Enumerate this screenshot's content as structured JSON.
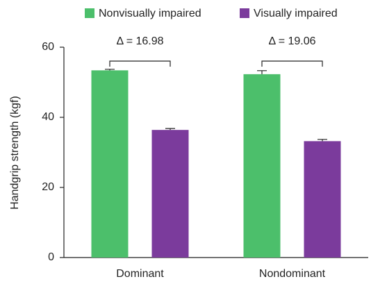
{
  "chart_data": {
    "type": "bar",
    "categories": [
      "Dominant",
      "Nondominant"
    ],
    "series": [
      {
        "name": "Nonvisually impaired",
        "color": "#4cbf6b",
        "values": [
          53.4,
          52.3
        ],
        "errors": [
          0.3,
          1.0
        ]
      },
      {
        "name": "Visually impaired",
        "color": "#7b3b9c",
        "values": [
          36.4,
          33.2
        ],
        "errors": [
          0.4,
          0.5
        ]
      }
    ],
    "ylabel": "Handgrip strength (kgf)",
    "ylim": [
      0,
      60
    ],
    "yticks": [
      0,
      20,
      40,
      60
    ],
    "annotations": [
      {
        "label": "Δ = 16.98"
      },
      {
        "label": "Δ = 19.06"
      }
    ]
  }
}
